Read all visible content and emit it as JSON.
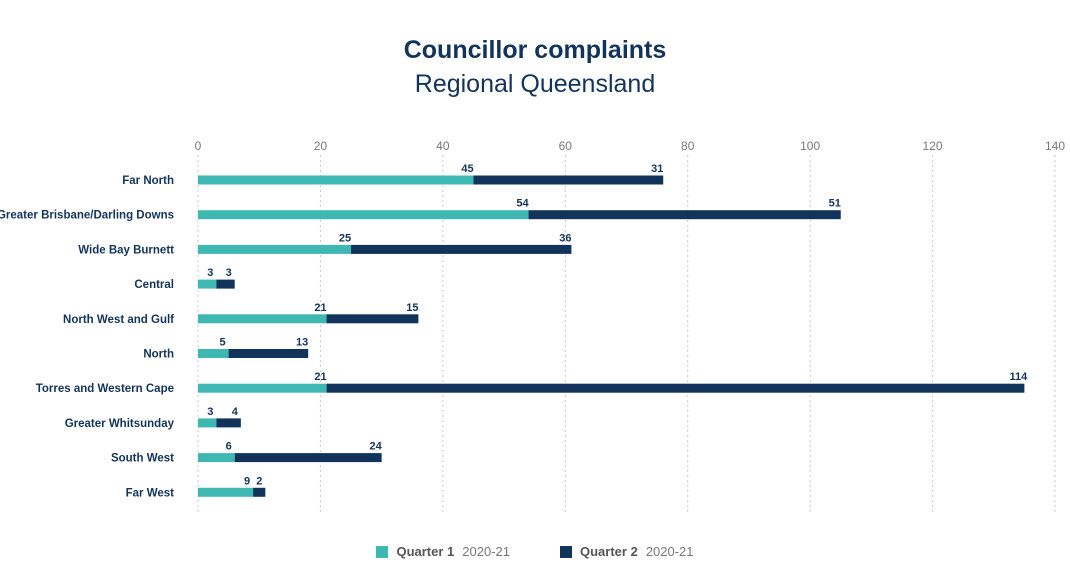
{
  "chart_data": {
    "type": "bar",
    "orientation": "horizontal",
    "stacked": true,
    "title": "Councillor complaints",
    "subtitle": "Regional Queensland",
    "categories": [
      "Far North",
      "Greater Brisbane/Darling Downs",
      "Wide Bay Burnett",
      "Central",
      "North West and Gulf",
      "North",
      "Torres and Western Cape",
      "Greater Whitsunday",
      "South West",
      "Far West"
    ],
    "series": [
      {
        "name": "Quarter 1",
        "period": "2020-21",
        "color": "#3fb8b4",
        "values": [
          45,
          54,
          25,
          3,
          21,
          5,
          21,
          3,
          6,
          9
        ]
      },
      {
        "name": "Quarter 2",
        "period": "2020-21",
        "color": "#13345a",
        "values": [
          31,
          51,
          36,
          3,
          15,
          13,
          114,
          4,
          24,
          2
        ]
      }
    ],
    "xlim": [
      0,
      140
    ],
    "xticks": [
      0,
      20,
      40,
      60,
      80,
      100,
      120,
      140
    ],
    "grid": "vertical dotted",
    "legend_position": "bottom"
  }
}
